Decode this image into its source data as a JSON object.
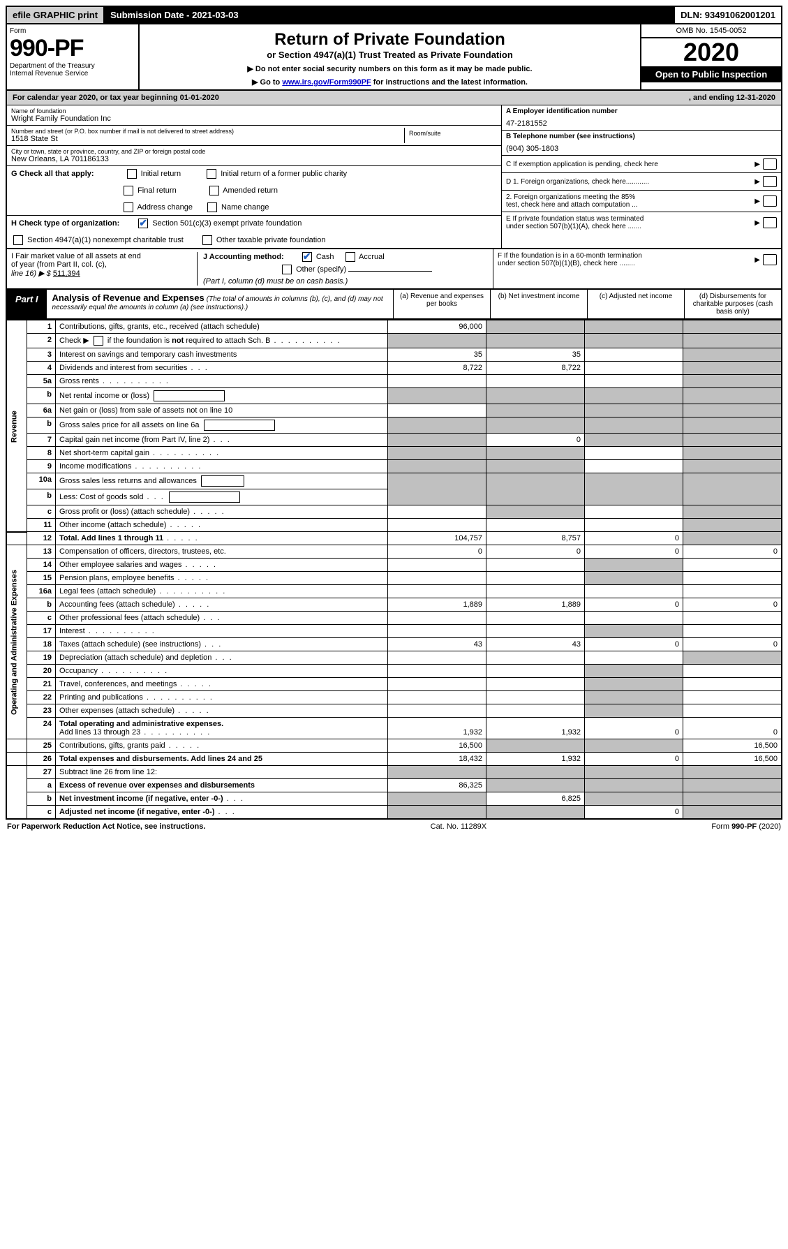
{
  "topbar": {
    "efile": "efile GRAPHIC print",
    "submission": "Submission Date - 2021-03-03",
    "dln": "DLN: 93491062001201"
  },
  "header": {
    "form_word": "Form",
    "form_num": "990-PF",
    "dept1": "Department of the Treasury",
    "dept2": "Internal Revenue Service",
    "title": "Return of Private Foundation",
    "subtitle": "or Section 4947(a)(1) Trust Treated as Private Foundation",
    "note1": "▶ Do not enter social security numbers on this form as it may be made public.",
    "note2_pre": "▶ Go to ",
    "note2_link": "www.irs.gov/Form990PF",
    "note2_post": " for instructions and the latest information.",
    "omb": "OMB No. 1545-0052",
    "year": "2020",
    "open": "Open to Public Inspection"
  },
  "cal": {
    "text_a": "For calendar year 2020, or tax year beginning 01-01-2020",
    "text_b": ", and ending 12-31-2020"
  },
  "id": {
    "name_lbl": "Name of foundation",
    "name": "Wright Family Foundation Inc",
    "addr_lbl": "Number and street (or P.O. box number if mail is not delivered to street address)",
    "addr": "1518 State St",
    "room_lbl": "Room/suite",
    "city_lbl": "City or town, state or province, country, and ZIP or foreign postal code",
    "city": "New Orleans, LA  701186133",
    "a_lbl": "A Employer identification number",
    "ein": "47-2181552",
    "b_lbl": "B Telephone number (see instructions)",
    "phone": "(904) 305-1803",
    "c_lbl": "C If exemption application is pending, check here",
    "d1": "D 1. Foreign organizations, check here............",
    "d2a": "2. Foreign organizations meeting the 85%",
    "d2b": "test, check here and attach computation ...",
    "e1": "E If private foundation status was terminated",
    "e2": "under section 507(b)(1)(A), check here .......",
    "f1": "F If the foundation is in a 60-month termination",
    "f2": "under section 507(b)(1)(B), check here ........"
  },
  "g": {
    "label": "G Check all that apply:",
    "initial": "Initial return",
    "initial_former": "Initial return of a former public charity",
    "final": "Final return",
    "amended": "Amended return",
    "addr_chg": "Address change",
    "name_chg": "Name change"
  },
  "h": {
    "label": "H Check type of organization:",
    "sec501": "Section 501(c)(3) exempt private foundation",
    "sec4947": "Section 4947(a)(1) nonexempt charitable trust",
    "other_tax": "Other taxable private foundation"
  },
  "i": {
    "label1": "I Fair market value of all assets at end",
    "label2": "of year (from Part II, col. (c),",
    "label3": "line 16) ▶ $",
    "value": "511,394"
  },
  "j": {
    "label": "J Accounting method:",
    "cash": "Cash",
    "accrual": "Accrual",
    "other": "Other (specify)",
    "note": "(Part I, column (d) must be on cash basis.)"
  },
  "part1": {
    "tab": "Part I",
    "title": "Analysis of Revenue and Expenses",
    "note": "(The total of amounts in columns (b), (c), and (d) may not necessarily equal the amounts in column (a) (see instructions).)",
    "col_a": "(a)   Revenue and expenses per books",
    "col_b": "(b)  Net investment income",
    "col_c": "(c)  Adjusted net income",
    "col_d": "(d)  Disbursements for charitable purposes (cash basis only)"
  },
  "sections": {
    "rev": "Revenue",
    "opx": "Operating and Administrative Expenses"
  },
  "rows": {
    "r1": {
      "n": "1",
      "d": "Contributions, gifts, grants, etc., received (attach schedule)",
      "a": "96,000"
    },
    "r2": {
      "n": "2",
      "d_pre": "Check ▶ ",
      "d_post": " if the foundation is ",
      "d_bold": "not",
      "d_end": " required to attach Sch. B"
    },
    "r3": {
      "n": "3",
      "d": "Interest on savings and temporary cash investments",
      "a": "35",
      "b": "35"
    },
    "r4": {
      "n": "4",
      "d": "Dividends and interest from securities",
      "a": "8,722",
      "b": "8,722"
    },
    "r5a": {
      "n": "5a",
      "d": "Gross rents"
    },
    "r5b": {
      "n": "b",
      "d": "Net rental income or (loss)"
    },
    "r6a": {
      "n": "6a",
      "d": "Net gain or (loss) from sale of assets not on line 10"
    },
    "r6b": {
      "n": "b",
      "d": "Gross sales price for all assets on line 6a"
    },
    "r7": {
      "n": "7",
      "d": "Capital gain net income (from Part IV, line 2)",
      "b": "0"
    },
    "r8": {
      "n": "8",
      "d": "Net short-term capital gain"
    },
    "r9": {
      "n": "9",
      "d": "Income modifications"
    },
    "r10a": {
      "n": "10a",
      "d": "Gross sales less returns and allowances"
    },
    "r10b": {
      "n": "b",
      "d": "Less: Cost of goods sold"
    },
    "r10c": {
      "n": "c",
      "d": "Gross profit or (loss) (attach schedule)"
    },
    "r11": {
      "n": "11",
      "d": "Other income (attach schedule)"
    },
    "r12": {
      "n": "12",
      "d": "Total. Add lines 1 through 11",
      "a": "104,757",
      "b": "8,757",
      "c": "0"
    },
    "r13": {
      "n": "13",
      "d": "Compensation of officers, directors, trustees, etc.",
      "a": "0",
      "b": "0",
      "c": "0",
      "dd": "0"
    },
    "r14": {
      "n": "14",
      "d": "Other employee salaries and wages"
    },
    "r15": {
      "n": "15",
      "d": "Pension plans, employee benefits"
    },
    "r16a": {
      "n": "16a",
      "d": "Legal fees (attach schedule)"
    },
    "r16b": {
      "n": "b",
      "d": "Accounting fees (attach schedule)",
      "a": "1,889",
      "b": "1,889",
      "c": "0",
      "dd": "0"
    },
    "r16c": {
      "n": "c",
      "d": "Other professional fees (attach schedule)"
    },
    "r17": {
      "n": "17",
      "d": "Interest"
    },
    "r18": {
      "n": "18",
      "d": "Taxes (attach schedule) (see instructions)",
      "a": "43",
      "b": "43",
      "c": "0",
      "dd": "0"
    },
    "r19": {
      "n": "19",
      "d": "Depreciation (attach schedule) and depletion"
    },
    "r20": {
      "n": "20",
      "d": "Occupancy"
    },
    "r21": {
      "n": "21",
      "d": "Travel, conferences, and meetings"
    },
    "r22": {
      "n": "22",
      "d": "Printing and publications"
    },
    "r23": {
      "n": "23",
      "d": "Other expenses (attach schedule)"
    },
    "r24": {
      "n": "24",
      "d1": "Total operating and administrative expenses.",
      "d2": "Add lines 13 through 23",
      "a": "1,932",
      "b": "1,932",
      "c": "0",
      "dd": "0"
    },
    "r25": {
      "n": "25",
      "d": "Contributions, gifts, grants paid",
      "a": "16,500",
      "dd": "16,500"
    },
    "r26": {
      "n": "26",
      "d": "Total expenses and disbursements. Add lines 24 and 25",
      "a": "18,432",
      "b": "1,932",
      "c": "0",
      "dd": "16,500"
    },
    "r27": {
      "n": "27",
      "d": "Subtract line 26 from line 12:"
    },
    "r27a": {
      "n": "a",
      "d": "Excess of revenue over expenses and disbursements",
      "a": "86,325"
    },
    "r27b": {
      "n": "b",
      "d": "Net investment income (if negative, enter -0-)",
      "b": "6,825"
    },
    "r27c": {
      "n": "c",
      "d": "Adjusted net income (if negative, enter -0-)",
      "c": "0"
    }
  },
  "footer": {
    "left": "For Paperwork Reduction Act Notice, see instructions.",
    "mid": "Cat. No. 11289X",
    "right": "Form 990-PF (2020)"
  }
}
